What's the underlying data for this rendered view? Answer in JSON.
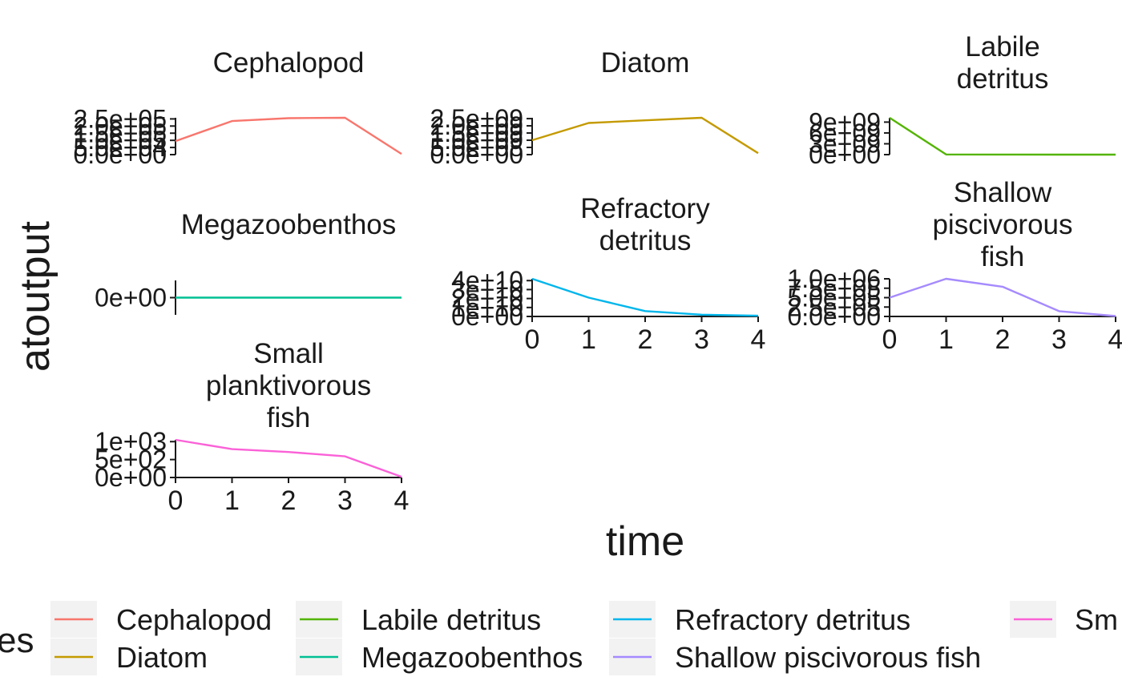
{
  "chart_data": {
    "type": "line",
    "xlabel": "time",
    "ylabel": "atoutput",
    "legend": {
      "title": "es",
      "placement": "bottom",
      "entries": [
        {
          "label": "Cephalopod",
          "color": "#F8766D"
        },
        {
          "label": "Diatom",
          "color": "#C49A00"
        },
        {
          "label": "Labile detritus",
          "color": "#53B400"
        },
        {
          "label": "Megazoobenthos",
          "color": "#00C094"
        },
        {
          "label": "Refractory detritus",
          "color": "#00B6EB"
        },
        {
          "label": "Shallow piscivorous fish",
          "color": "#A58AFF"
        },
        {
          "label": "Sm",
          "color": "#FB61D7"
        }
      ]
    },
    "x_ticks": [
      "0",
      "1",
      "2",
      "3",
      "4"
    ],
    "xlim": [
      0,
      4
    ],
    "grid": false,
    "panels": [
      {
        "title": [
          "Cephalopod"
        ],
        "color": "#F8766D",
        "x": [
          0,
          1,
          2,
          3,
          4
        ],
        "values": [
          95000,
          235000,
          255000,
          258000,
          5000
        ],
        "ylim": [
          0,
          258000
        ],
        "y_ticks": [
          {
            "label": "0.0e+00",
            "value": 0
          },
          {
            "label": "5.0e+04",
            "value": 50000
          },
          {
            "label": "1.0e+05",
            "value": 100000
          },
          {
            "label": "1.5e+05",
            "value": 150000
          },
          {
            "label": "2.0e+05",
            "value": 200000
          },
          {
            "label": "2.5e+05",
            "value": 250000
          }
        ],
        "show_x_axis": false
      },
      {
        "title": [
          "Diatom"
        ],
        "color": "#C49A00",
        "x": [
          0,
          1,
          2,
          3,
          4
        ],
        "values": [
          1000000000,
          2200000000,
          2380000000,
          2560000000,
          100000000
        ],
        "ylim": [
          0,
          2560000000
        ],
        "y_ticks": [
          {
            "label": "0.0e+00",
            "value": 0
          },
          {
            "label": "5.0e+08",
            "value": 500000000
          },
          {
            "label": "1.0e+09",
            "value": 1000000000
          },
          {
            "label": "1.5e+09",
            "value": 1500000000
          },
          {
            "label": "2.0e+09",
            "value": 2000000000
          },
          {
            "label": "2.5e+09",
            "value": 2500000000
          }
        ],
        "show_x_axis": false
      },
      {
        "title": [
          "Labile",
          "detritus"
        ],
        "color": "#53B400",
        "x": [
          0,
          1,
          2,
          3,
          4
        ],
        "values": [
          10200000000,
          50000000,
          20000000,
          10000000,
          0
        ],
        "ylim": [
          0,
          10200000000
        ],
        "y_ticks": [
          {
            "label": "0e+00",
            "value": 0
          },
          {
            "label": "3e+09",
            "value": 3000000000
          },
          {
            "label": "6e+09",
            "value": 6000000000
          },
          {
            "label": "9e+09",
            "value": 9000000000
          }
        ],
        "show_x_axis": false
      },
      {
        "title": [
          "Megazoobenthos"
        ],
        "color": "#00C094",
        "x": [
          0,
          1,
          2,
          3,
          4
        ],
        "values": [
          0,
          0,
          0,
          0,
          0
        ],
        "ylim": [
          -1,
          1
        ],
        "y_ticks": [
          {
            "label": "0e+00",
            "value": 0
          }
        ],
        "show_x_axis": false
      },
      {
        "title": [
          "Refractory",
          "detritus"
        ],
        "color": "#00B6EB",
        "x": [
          0,
          1,
          2,
          3,
          4
        ],
        "values": [
          42000000000,
          21000000000,
          6000000000,
          2000000000,
          800000000
        ],
        "ylim": [
          0,
          42000000000
        ],
        "y_ticks": [
          {
            "label": "0e+00",
            "value": 0
          },
          {
            "label": "1e+10",
            "value": 10000000000
          },
          {
            "label": "2e+10",
            "value": 20000000000
          },
          {
            "label": "3e+10",
            "value": 30000000000
          },
          {
            "label": "4e+10",
            "value": 40000000000
          }
        ],
        "show_x_axis": true
      },
      {
        "title": [
          "Shallow",
          "piscivorous",
          "fish"
        ],
        "color": "#A58AFF",
        "x": [
          0,
          1,
          2,
          3,
          4
        ],
        "values": [
          500000,
          1000000,
          790000,
          140000,
          10000
        ],
        "ylim": [
          0,
          1000000
        ],
        "y_ticks": [
          {
            "label": "0.0e+00",
            "value": 0
          },
          {
            "label": "2.5e+05",
            "value": 250000
          },
          {
            "label": "5.0e+05",
            "value": 500000
          },
          {
            "label": "7.5e+05",
            "value": 750000
          },
          {
            "label": "1.0e+06",
            "value": 1000000
          }
        ],
        "show_x_axis": true
      },
      {
        "title": [
          "Small",
          "planktivorous",
          "fish"
        ],
        "color": "#FB61D7",
        "x": [
          0,
          1,
          2,
          3,
          4
        ],
        "values": [
          1050,
          790,
          710,
          590,
          20
        ],
        "ylim": [
          0,
          1050
        ],
        "y_ticks": [
          {
            "label": "0e+00",
            "value": 0
          },
          {
            "label": "5e+02",
            "value": 500
          },
          {
            "label": "1e+03",
            "value": 1000
          }
        ],
        "show_x_axis": true
      }
    ]
  }
}
